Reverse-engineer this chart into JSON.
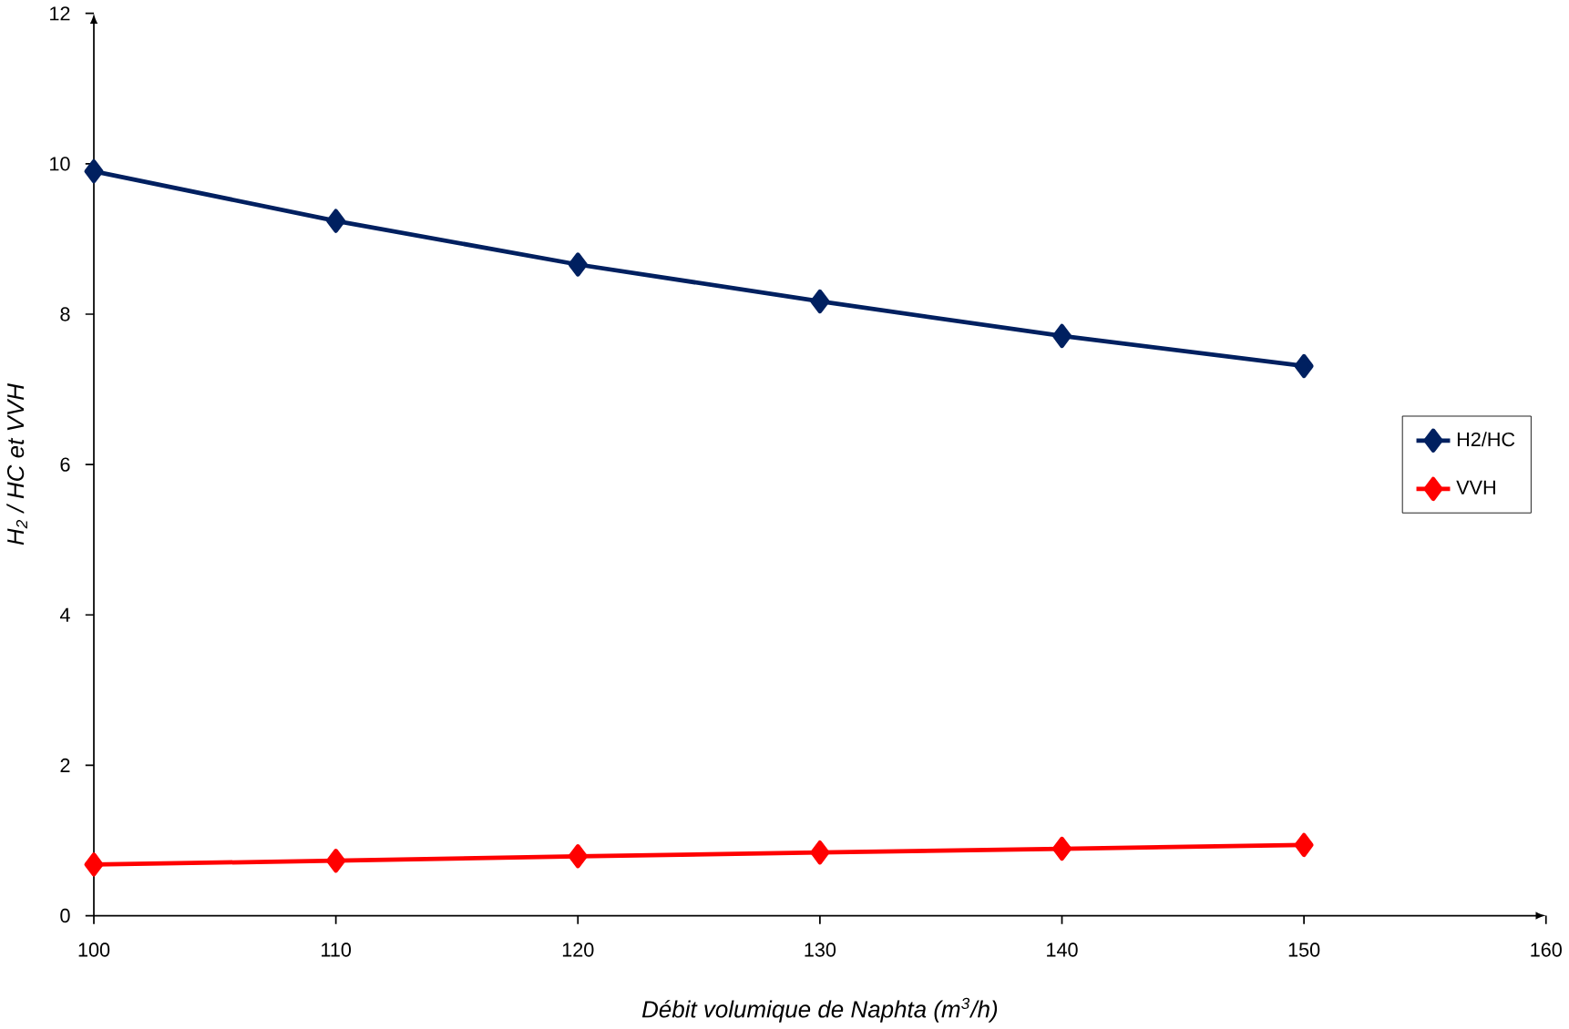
{
  "chart_data": {
    "type": "line",
    "xlabel": "Débit volumique de Naphta (m$^{3}$/h)",
    "ylabel": "H$_{2}$ / HC et VVH",
    "x": [
      100,
      110,
      120,
      130,
      140,
      150
    ],
    "series": [
      {
        "name": "H2/HC",
        "color": "#002060",
        "values": [
          9.9,
          9.24,
          8.66,
          8.17,
          7.71,
          7.31
        ]
      },
      {
        "name": "VVH",
        "color": "#ff0000",
        "values": [
          0.68,
          0.73,
          0.79,
          0.84,
          0.89,
          0.94
        ]
      }
    ],
    "xlim": [
      100,
      160
    ],
    "ylim": [
      0,
      12
    ],
    "xticks": [
      100,
      110,
      120,
      130,
      140,
      150,
      160
    ],
    "yticks": [
      0,
      2,
      4,
      6,
      8,
      10,
      12
    ],
    "grid": false,
    "legend": "right",
    "marker": "diamond",
    "line_style": "solid"
  }
}
